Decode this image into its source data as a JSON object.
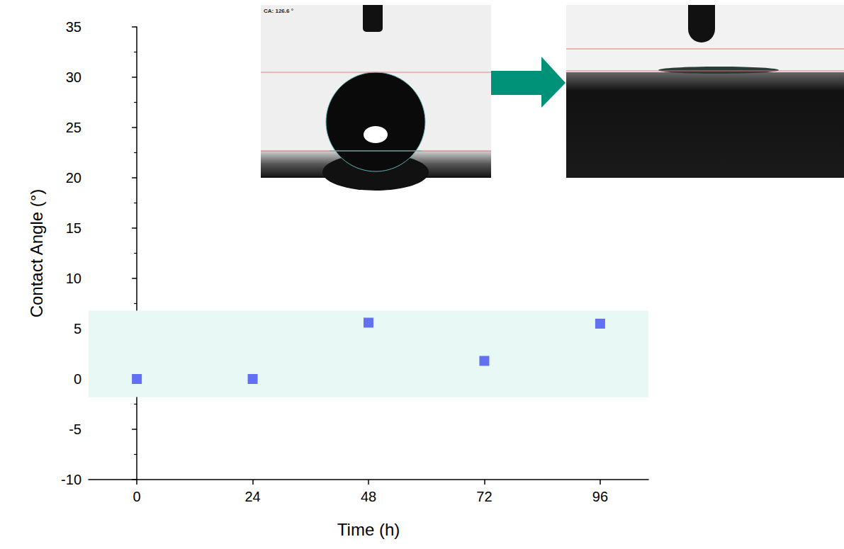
{
  "chart_data": {
    "type": "scatter",
    "x_label": "Time (h)",
    "y_label": "Contact Angle (°)",
    "x": [
      0,
      24,
      48,
      72,
      96
    ],
    "values": [
      0,
      0,
      5.6,
      1.8,
      5.5
    ],
    "color": "#3f4ff0",
    "marker": "square",
    "xlim": [
      -10,
      106
    ],
    "xticks": [
      0,
      24,
      48,
      72,
      96
    ],
    "ylim": [
      -10,
      35
    ],
    "yticks": [
      -10,
      -5,
      0,
      5,
      10,
      15,
      20,
      25,
      30,
      35
    ],
    "grid": false,
    "shaded_band": [
      -1.8,
      6.8
    ],
    "annotations": [
      "CA: 126.6 °"
    ]
  }
}
